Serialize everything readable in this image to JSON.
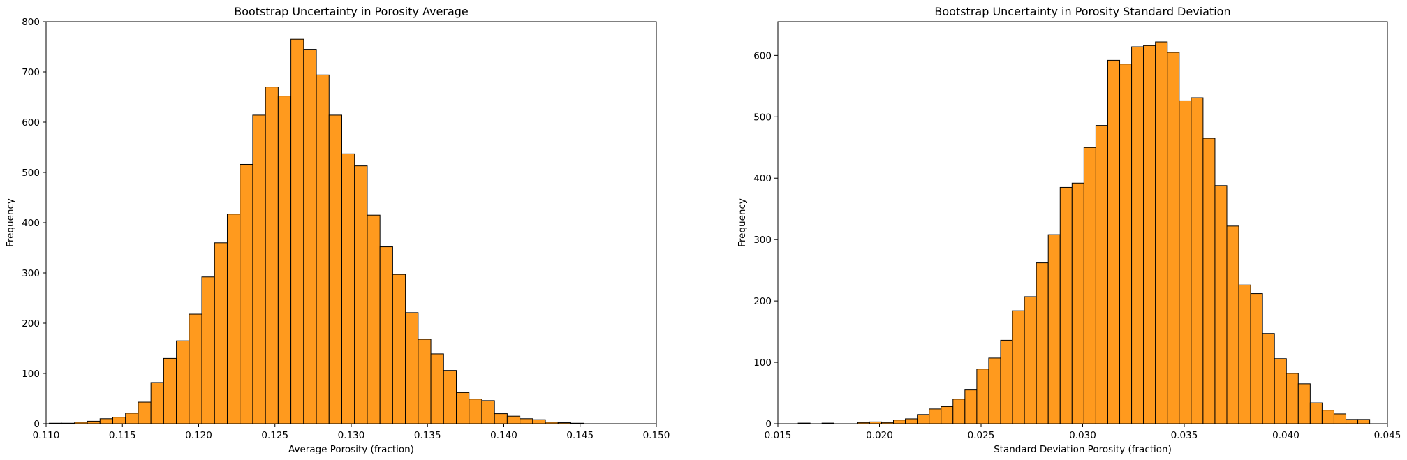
{
  "chart_data": [
    {
      "type": "bar",
      "title": "Bootstrap Uncertainty in Porosity Average",
      "xlabel": "Average Porosity (fraction)",
      "ylabel": "Frequency",
      "xlim": [
        0.11,
        0.15
      ],
      "ylim": [
        0,
        800
      ],
      "xticks": [
        "0.110",
        "0.115",
        "0.120",
        "0.125",
        "0.130",
        "0.135",
        "0.140",
        "0.145",
        "0.150"
      ],
      "yticks": [
        "0",
        "100",
        "200",
        "300",
        "400",
        "500",
        "600",
        "700",
        "800"
      ],
      "bin_start": 0.1102,
      "bin_width": 0.000834,
      "values": [
        1,
        1,
        3,
        5,
        10,
        13,
        21,
        43,
        82,
        130,
        165,
        218,
        292,
        360,
        417,
        516,
        614,
        670,
        652,
        765,
        745,
        694,
        614,
        537,
        513,
        415,
        352,
        297,
        221,
        168,
        139,
        106,
        62,
        49,
        46,
        20,
        15,
        10,
        8,
        3,
        2,
        1
      ],
      "bar_color": "#ff9a1e",
      "edge_color": "#000000",
      "grid": false
    },
    {
      "type": "bar",
      "title": "Bootstrap Uncertainty in Porosity Standard Deviation",
      "xlabel": "Standard Deviation Porosity (fraction)",
      "ylabel": "Frequency",
      "xlim": [
        0.015,
        0.045
      ],
      "ylim": [
        0,
        655
      ],
      "xticks": [
        "0.015",
        "0.020",
        "0.025",
        "0.030",
        "0.035",
        "0.040",
        "0.045"
      ],
      "yticks": [
        "0",
        "100",
        "200",
        "300",
        "400",
        "500",
        "600"
      ],
      "bin_start": 0.016,
      "bin_width": 0.000586,
      "values": [
        1,
        0,
        1,
        0,
        0,
        2,
        3,
        2,
        6,
        8,
        15,
        24,
        28,
        40,
        55,
        89,
        107,
        136,
        184,
        207,
        262,
        308,
        385,
        392,
        450,
        486,
        592,
        586,
        614,
        616,
        622,
        605,
        526,
        531,
        465,
        388,
        322,
        226,
        212,
        147,
        106,
        82,
        65,
        34,
        22,
        16,
        7,
        7
      ],
      "bar_color": "#ff9a1e",
      "edge_color": "#000000",
      "grid": false
    }
  ]
}
